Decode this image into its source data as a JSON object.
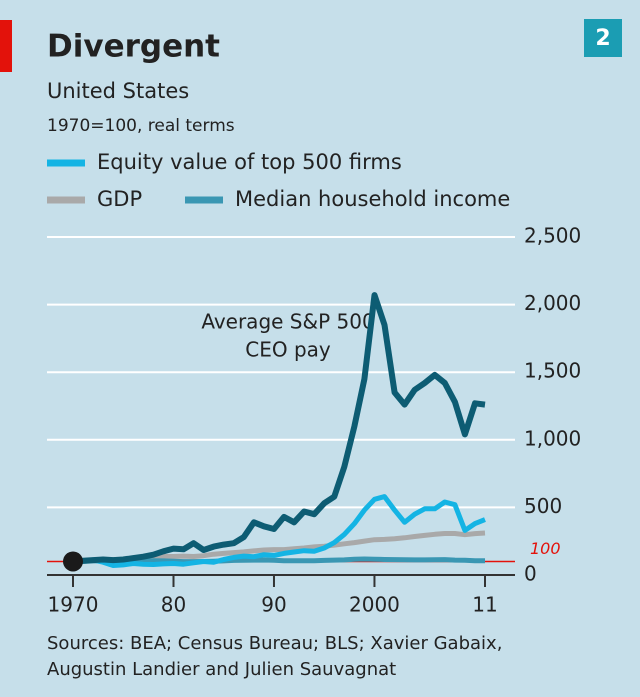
{
  "chart_data": {
    "type": "line",
    "title": "Divergent",
    "subtitle": "United States",
    "note": "1970=100, real terms",
    "badge": "2",
    "annotation": [
      "Average S&P 500",
      "CEO pay"
    ],
    "source": [
      "Sources: BEA; Census Bureau; BLS; Xavier Gabaix,",
      "Augustin Landier and Julien Sauvagnat"
    ],
    "x": [
      1970,
      1971,
      1972,
      1973,
      1974,
      1975,
      1976,
      1977,
      1978,
      1979,
      1980,
      1981,
      1982,
      1983,
      1984,
      1985,
      1986,
      1987,
      1988,
      1989,
      1990,
      1991,
      1992,
      1993,
      1994,
      1995,
      1996,
      1997,
      1998,
      1999,
      2000,
      2001,
      2002,
      2003,
      2004,
      2005,
      2006,
      2007,
      2008,
      2009,
      2010,
      2011
    ],
    "xlim": [
      1970,
      2011
    ],
    "xticks": [
      1970,
      {
        "value": 1980,
        "label": "80"
      },
      {
        "value": 1990,
        "label": "90"
      },
      2000,
      {
        "value": 2011,
        "label": "11"
      }
    ],
    "ylim": [
      0,
      2500
    ],
    "yticks": [
      0,
      500,
      {
        "value": 1000,
        "label": "1,000"
      },
      {
        "value": 1500,
        "label": "1,500"
      },
      {
        "value": 2000,
        "label": "2,000"
      },
      {
        "value": 2500,
        "label": "2,500"
      }
    ],
    "hline": {
      "value": 100,
      "color": "#e3120b"
    },
    "grid": true,
    "series": [
      {
        "name": "Equity value of top 500 firms",
        "color": "#14b4e4",
        "values": [
          100,
          105,
          112,
          95,
          70,
          75,
          85,
          80,
          78,
          82,
          85,
          80,
          90,
          100,
          95,
          115,
          130,
          140,
          135,
          150,
          145,
          160,
          170,
          180,
          175,
          200,
          240,
          300,
          380,
          480,
          560,
          580,
          480,
          390,
          450,
          490,
          490,
          540,
          520,
          330,
          380,
          410
        ]
      },
      {
        "name": "GDP",
        "color": "#a9a9a9",
        "values": [
          100,
          103,
          109,
          115,
          114,
          114,
          120,
          126,
          133,
          137,
          137,
          140,
          137,
          143,
          154,
          160,
          166,
          171,
          178,
          185,
          188,
          188,
          194,
          200,
          208,
          213,
          221,
          231,
          240,
          251,
          261,
          263,
          268,
          275,
          285,
          293,
          301,
          307,
          307,
          298,
          306,
          311
        ]
      },
      {
        "name": "Median household income",
        "color": "#3a97b3",
        "values": [
          100,
          100,
          104,
          105,
          102,
          100,
          101,
          102,
          105,
          104,
          101,
          99,
          99,
          100,
          102,
          104,
          108,
          109,
          110,
          111,
          109,
          106,
          105,
          105,
          106,
          108,
          110,
          112,
          116,
          118,
          117,
          115,
          114,
          113,
          112,
          112,
          113,
          114,
          110,
          109,
          106,
          105
        ]
      },
      {
        "name": "Average S&P 500 CEO pay",
        "color": "#0d5c73",
        "values": [
          100,
          105,
          110,
          115,
          110,
          115,
          125,
          135,
          150,
          175,
          195,
          190,
          235,
          185,
          210,
          225,
          235,
          280,
          390,
          360,
          340,
          430,
          390,
          470,
          450,
          530,
          580,
          800,
          1100,
          1450,
          2070,
          1850,
          1350,
          1260,
          1370,
          1420,
          1480,
          1420,
          1280,
          1040,
          1270,
          1260
        ]
      }
    ]
  }
}
